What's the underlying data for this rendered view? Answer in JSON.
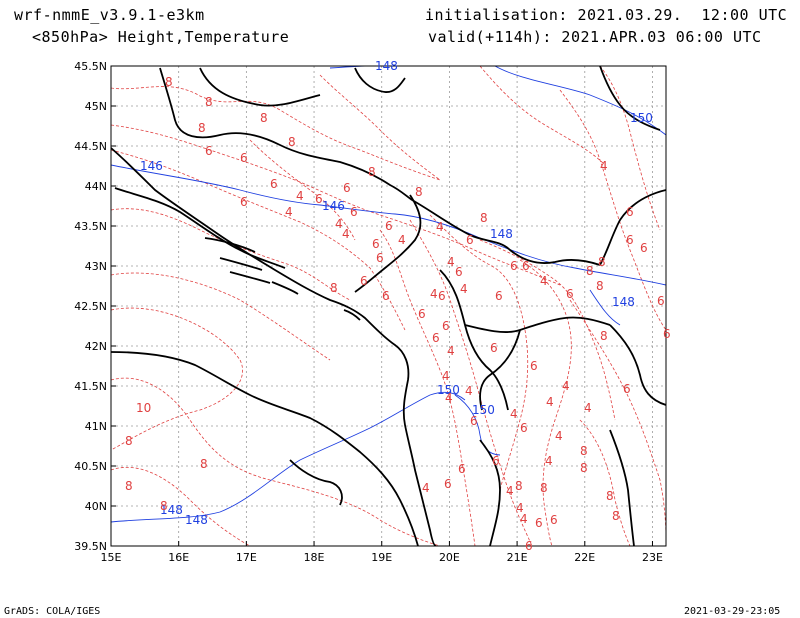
{
  "header": {
    "model": "wrf-nmmE_v3.9.1-e3km",
    "field": "<850hPa> Height,Temperature",
    "init": "initialisation: 2021.03.29.  12:00 UTC",
    "valid": "valid(+114h): 2021.APR.03 06:00 UTC"
  },
  "footer": {
    "software": "GrADS: COLA/IGES",
    "timestamp": "2021-03-29-23:05"
  },
  "map": {
    "lon_range": [
      15,
      23.2
    ],
    "lat_range": [
      39.5,
      45.5
    ],
    "x_tick_labels": [
      "15E",
      "16E",
      "17E",
      "18E",
      "19E",
      "20E",
      "21E",
      "22E",
      "23E"
    ],
    "y_tick_labels": [
      "39.5N",
      "40N",
      "40.5N",
      "41N",
      "41.5N",
      "42N",
      "42.5N",
      "43N",
      "43.5N",
      "44N",
      "44.5N",
      "45N",
      "45.5N"
    ],
    "colors": {
      "height": "#2040e0",
      "temperature": "#e04040",
      "coast": "#000000",
      "grid": "#9a9a9a"
    },
    "height_labels": [
      "146",
      "148",
      "150",
      "146",
      "148",
      "148",
      "150",
      "150",
      "148",
      "148"
    ],
    "temperature_labels": [
      "8",
      "8",
      "8",
      "8",
      "6",
      "6",
      "8",
      "6",
      "6",
      "4",
      "6",
      "8",
      "6",
      "4",
      "6",
      "4",
      "4",
      "8",
      "6",
      "6",
      "4",
      "6",
      "4",
      "4",
      "6",
      "4",
      "4",
      "6",
      "8",
      "6",
      "6",
      "6",
      "6",
      "6",
      "4",
      "6",
      "6",
      "6",
      "6",
      "4",
      "4",
      "4",
      "4",
      "6",
      "6",
      "4",
      "4",
      "4",
      "4",
      "6",
      "4",
      "4",
      "4",
      "6",
      "6",
      "4",
      "6",
      "6",
      "6",
      "4",
      "10",
      "8",
      "8",
      "8",
      "8",
      "8",
      "6",
      "8",
      "8",
      "4",
      "4",
      "8",
      "8",
      "8",
      "6",
      "6",
      "6",
      "6",
      "6",
      "8",
      "8",
      "6",
      "8",
      "8",
      "8",
      "6",
      "6"
    ]
  }
}
